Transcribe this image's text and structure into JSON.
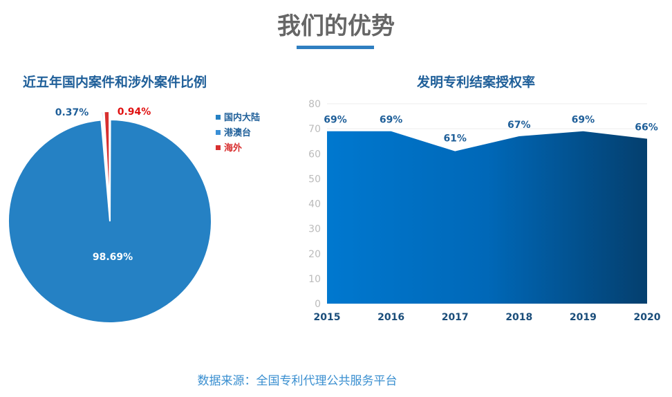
{
  "header": {
    "title": "我们的优势"
  },
  "source": "数据来源：全国专利代理公共服务平台",
  "chart_data": [
    {
      "type": "pie",
      "title": "近五年国内案件和涉外案件比例",
      "slices": [
        {
          "name": "国内大陆",
          "value": 98.69,
          "label": "98.69%",
          "color": "#2581c4"
        },
        {
          "name": "港澳台",
          "value": 0.37,
          "label": "0.37%",
          "color": "#3a8fd6"
        },
        {
          "name": "海外",
          "value": 0.94,
          "label": "0.94%",
          "color": "#d83030"
        }
      ],
      "legend": "right"
    },
    {
      "type": "area",
      "title": "发明专利结案授权率",
      "categories": [
        "2015",
        "2016",
        "2017",
        "2018",
        "2019",
        "2020"
      ],
      "values": [
        69,
        69,
        61,
        67,
        69,
        66
      ],
      "labels": [
        "69%",
        "69%",
        "61%",
        "67%",
        "69%",
        "66%"
      ],
      "ylim": [
        0,
        80
      ],
      "yticks": [
        0,
        10,
        20,
        30,
        40,
        50,
        60,
        70,
        80
      ],
      "grid": true
    }
  ]
}
